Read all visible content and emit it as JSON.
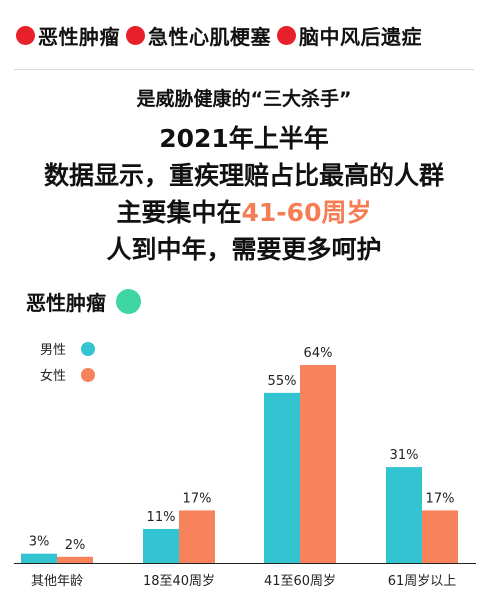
{
  "header": {
    "tags": [
      {
        "label": "恶性肿瘤"
      },
      {
        "label": "急性心肌梗塞"
      },
      {
        "label": "脑中风后遗症"
      }
    ],
    "subtitle": "是威胁健康的“三大杀手”"
  },
  "headline": {
    "line1": "2021年上半年",
    "line2": "数据显示，重疾理赔占比最高的人群",
    "line3_prefix": "主要集中在",
    "line3_accent": "41-60周岁",
    "line4": "人到中年，需要更多呵护"
  },
  "section": {
    "label": "恶性肿瘤",
    "dot_icon": "circle-icon",
    "dot_color": "#3ed6a2"
  },
  "colors": {
    "tag_dot": "#e8202a",
    "accent": "#f47d53",
    "male": "#33c4d1",
    "female": "#f6835c"
  },
  "chart_data": {
    "type": "bar",
    "categories": [
      "其他年龄",
      "18至40周岁",
      "41至60周岁",
      "61周岁以上"
    ],
    "series": [
      {
        "name": "男性",
        "values": [
          3,
          11,
          55,
          31
        ],
        "labels": [
          "3%",
          "11%",
          "55%",
          "31%"
        ],
        "color": "#33c4d1"
      },
      {
        "name": "女性",
        "values": [
          2,
          17,
          64,
          17
        ],
        "labels": [
          "2%",
          "17%",
          "64%",
          "17%"
        ],
        "color": "#f6835c"
      }
    ],
    "ylim": [
      0,
      64
    ],
    "legend_position": "top-left",
    "grid": false,
    "title": "",
    "xlabel": "",
    "ylabel": ""
  }
}
